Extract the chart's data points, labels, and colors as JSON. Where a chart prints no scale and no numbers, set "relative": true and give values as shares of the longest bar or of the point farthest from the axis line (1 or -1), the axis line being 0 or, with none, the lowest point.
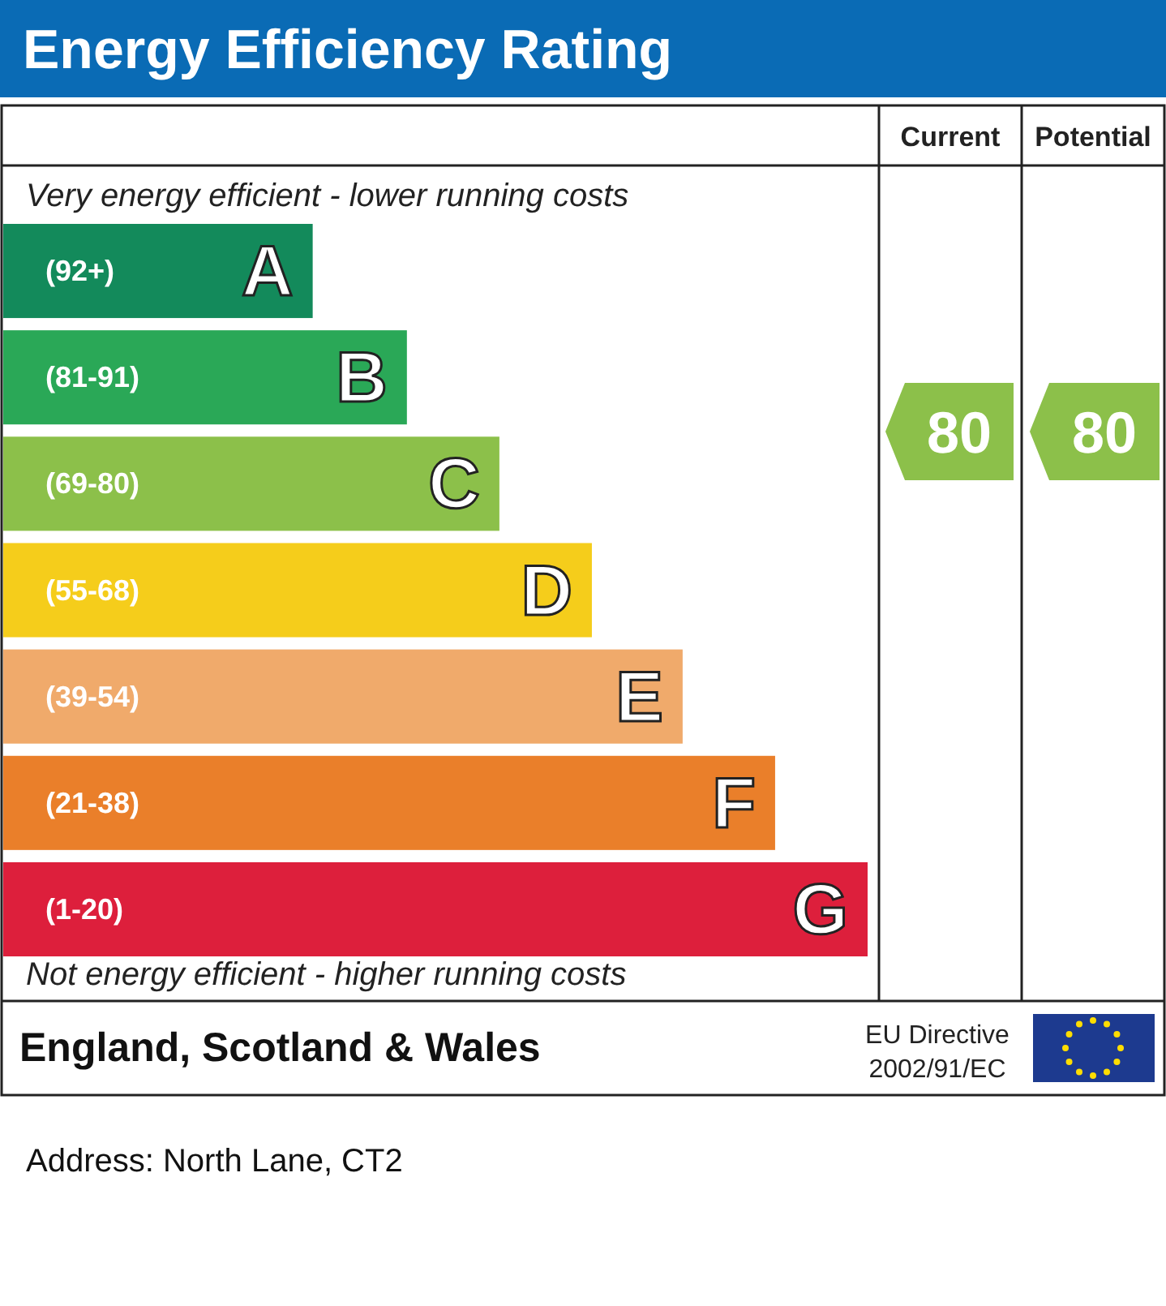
{
  "chart_data": {
    "type": "bar",
    "orientation": "horizontal",
    "relative": true,
    "title": "Energy Efficiency Rating",
    "categories": [
      "A",
      "B",
      "C",
      "D",
      "E",
      "F",
      "G"
    ],
    "values": [
      0.358,
      0.467,
      0.574,
      0.681,
      0.786,
      0.893,
      1
    ],
    "colors": [
      "#138a5b",
      "#2aa857",
      "#8cc04a",
      "#f5cd1b",
      "#f0aa6b",
      "#ea7f2a",
      "#dd1f3c"
    ],
    "annotations": [
      "Very energy efficient - lower running costs",
      "Not energy efficient - higher running costs",
      "England, Scotland & Wales",
      "EU Directive",
      "2002/91/EC",
      "Address: North Lane, CT2",
      "Current",
      "Potential",
      "80",
      "80",
      "(92+)",
      "(81-91)",
      "(69-80)",
      "(55-68)",
      "(39-54)",
      "(21-38)",
      "(1-20)"
    ]
  }
}
